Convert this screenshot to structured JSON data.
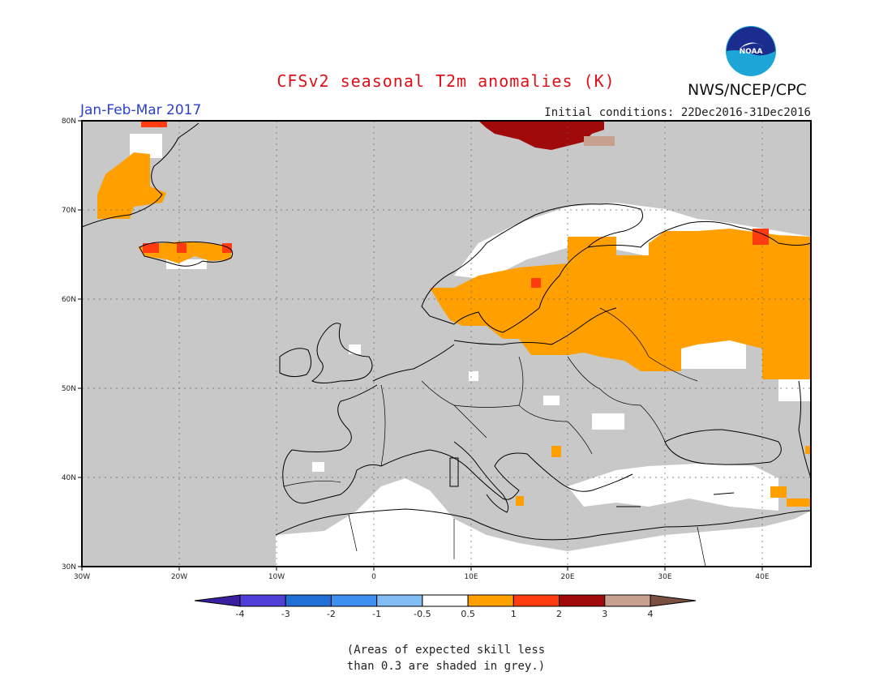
{
  "title": "CFSv2 seasonal T2m anomalies (K)",
  "agency": "NWS/NCEP/CPC",
  "logo_text": "NOAA",
  "season": "Jan-Feb-Mar 2017",
  "initial_conditions": "Initial conditions: 22Dec2016-31Dec2016",
  "lat_labels": [
    "80N",
    "70N",
    "60N",
    "50N",
    "40N",
    "30N"
  ],
  "lon_labels": [
    "30W",
    "20W",
    "10W",
    "0",
    "10E",
    "20E",
    "30E",
    "40E"
  ],
  "colorbar": {
    "labels": [
      "-4",
      "-3",
      "-2",
      "-1",
      "-0.5",
      "0.5",
      "1",
      "2",
      "3",
      "4"
    ],
    "colors": [
      "#3a1fa0",
      "#5040d8",
      "#1f6fd6",
      "#3d8ff0",
      "#80bdf5",
      "#ffffff",
      "#ffa000",
      "#ff3c10",
      "#a00a0a",
      "#c8a090",
      "#7a5040"
    ]
  },
  "note_lines": [
    "(Areas of expected skill less",
    "than 0.3 are shaded in grey.)"
  ],
  "colors": {
    "grey_mask": "#c8c8c8",
    "anomaly_0_5_to_1": "#ffa000",
    "anomaly_1_to_2": "#ff3c10",
    "anomaly_2_to_3": "#a00a0a",
    "anomaly_3_to_4": "#c8a090",
    "title": "#e0101a",
    "season": "#2a3fd0"
  }
}
